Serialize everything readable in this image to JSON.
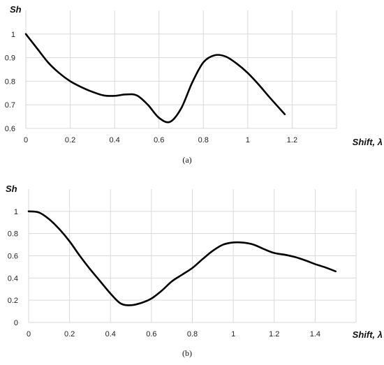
{
  "chart_data": [
    {
      "type": "line",
      "panel_label": "(a)",
      "xlabel": "Shift, λ",
      "ylabel": "Sh",
      "xlim": [
        0,
        1.4
      ],
      "ylim": [
        0.6,
        1.1
      ],
      "x_ticks": [
        0,
        0.2,
        0.4,
        0.6,
        0.8,
        1,
        1.2
      ],
      "y_ticks": [
        0.6,
        0.7,
        0.8,
        0.9,
        1
      ],
      "grid": true,
      "series": [
        {
          "x": [
            0,
            0.05,
            0.1,
            0.15,
            0.2,
            0.25,
            0.3,
            0.35,
            0.4,
            0.45,
            0.5,
            0.55,
            0.6,
            0.65,
            0.7,
            0.75,
            0.8,
            0.85,
            0.9,
            0.95,
            1.0,
            1.05,
            1.1,
            1.167
          ],
          "y": [
            1.0,
            0.94,
            0.88,
            0.835,
            0.8,
            0.775,
            0.755,
            0.74,
            0.738,
            0.744,
            0.74,
            0.7,
            0.645,
            0.628,
            0.685,
            0.795,
            0.88,
            0.91,
            0.905,
            0.875,
            0.835,
            0.785,
            0.73,
            0.66
          ]
        }
      ]
    },
    {
      "type": "line",
      "panel_label": "(b)",
      "xlabel": "Shift, λ",
      "ylabel": "Sh",
      "xlim": [
        0,
        1.6
      ],
      "ylim": [
        0,
        1.2
      ],
      "x_ticks": [
        0,
        0.2,
        0.4,
        0.6,
        0.8,
        1,
        1.2,
        1.4
      ],
      "y_ticks": [
        0,
        0.2,
        0.4,
        0.6,
        0.8,
        1
      ],
      "grid": true,
      "series": [
        {
          "x": [
            0,
            0.05,
            0.1,
            0.15,
            0.2,
            0.25,
            0.3,
            0.35,
            0.4,
            0.45,
            0.5,
            0.55,
            0.6,
            0.65,
            0.7,
            0.75,
            0.8,
            0.85,
            0.9,
            0.95,
            1.0,
            1.05,
            1.1,
            1.15,
            1.2,
            1.25,
            1.3,
            1.35,
            1.4,
            1.45,
            1.5
          ],
          "y": [
            1.0,
            0.99,
            0.93,
            0.84,
            0.73,
            0.6,
            0.48,
            0.37,
            0.26,
            0.17,
            0.155,
            0.175,
            0.215,
            0.285,
            0.37,
            0.43,
            0.49,
            0.57,
            0.645,
            0.7,
            0.72,
            0.718,
            0.7,
            0.66,
            0.625,
            0.61,
            0.59,
            0.56,
            0.525,
            0.495,
            0.46
          ]
        }
      ]
    }
  ]
}
